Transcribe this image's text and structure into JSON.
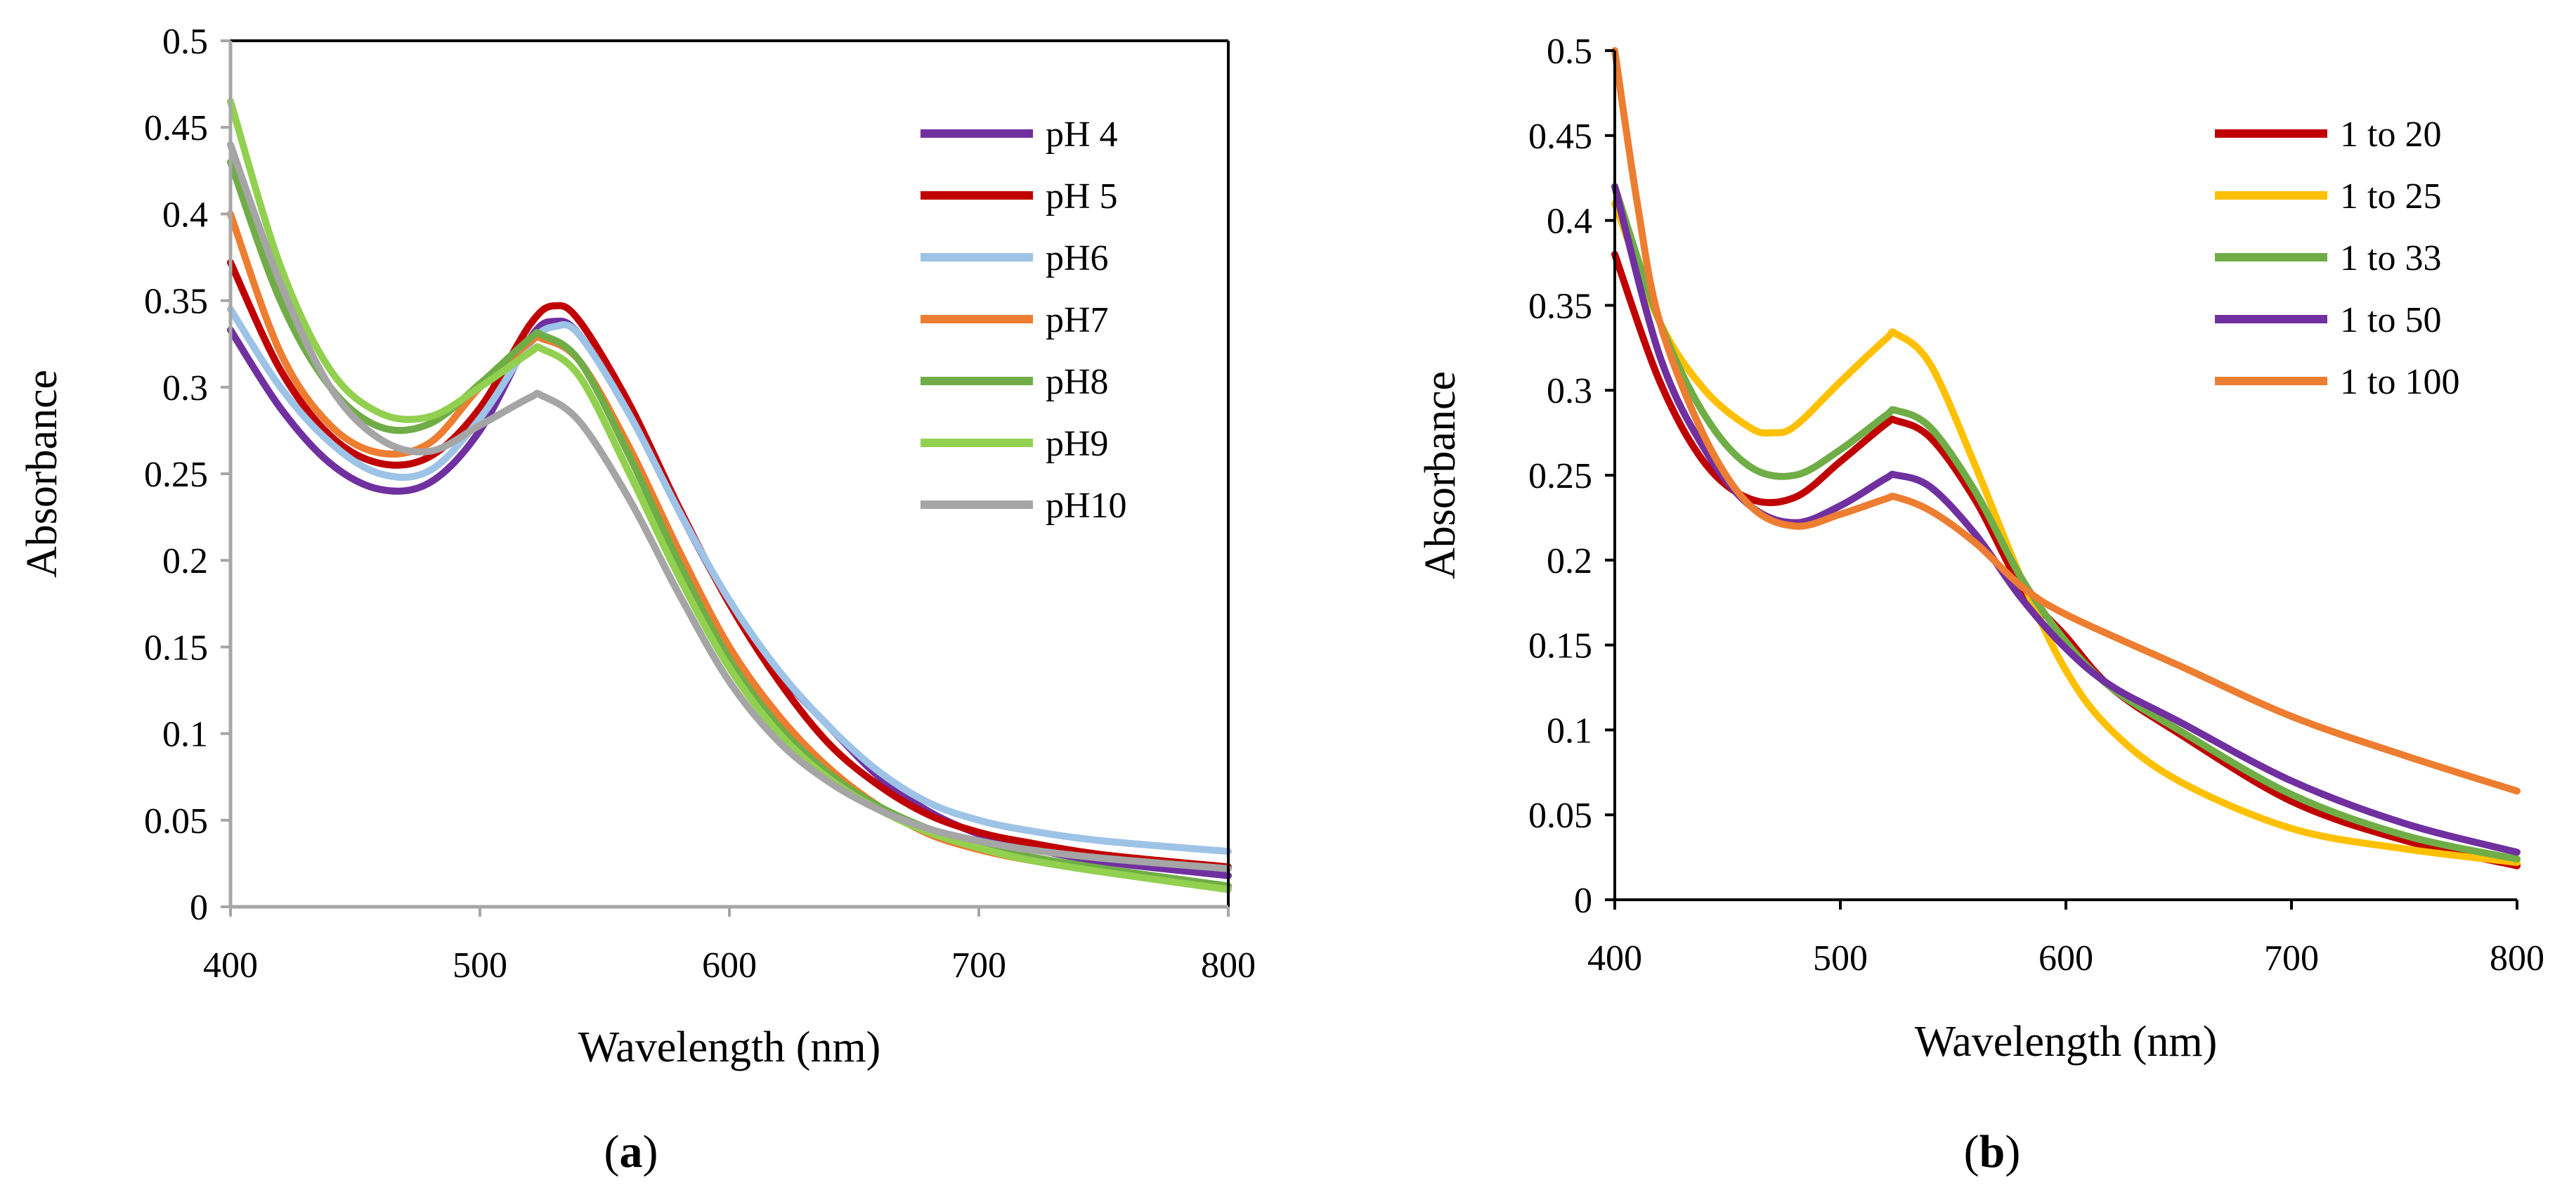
{
  "chart_data": [
    {
      "type": "line",
      "panel": "a",
      "panel_label": "a",
      "xlabel": "Wavelength (nm)",
      "ylabel": "Absorbance",
      "xlim": [
        400,
        800
      ],
      "ylim": [
        0,
        0.5
      ],
      "xticks": [
        400,
        500,
        600,
        700,
        800
      ],
      "xtick_labels": [
        "400",
        "500",
        "600",
        "700",
        "800"
      ],
      "yticks": [
        0,
        0.05,
        0.1,
        0.15,
        0.2,
        0.25,
        0.3,
        0.35,
        0.4,
        0.45,
        0.5
      ],
      "ytick_labels": [
        "0",
        "0.05",
        "0.1",
        "0.15",
        "0.2",
        "0.25",
        "0.3",
        "0.35",
        "0.4",
        "0.45",
        "0.5"
      ],
      "grid": false,
      "legend_position": "top-right",
      "series": [
        {
          "name": "pH 4",
          "color": "#7030A0",
          "x": [
            400,
            420,
            440,
            460,
            480,
            500,
            520,
            530,
            540,
            560,
            580,
            600,
            620,
            640,
            660,
            680,
            700,
            720,
            750,
            800
          ],
          "y": [
            0.333,
            0.288,
            0.256,
            0.241,
            0.245,
            0.275,
            0.328,
            0.338,
            0.33,
            0.285,
            0.228,
            0.176,
            0.135,
            0.104,
            0.075,
            0.055,
            0.042,
            0.034,
            0.026,
            0.018
          ]
        },
        {
          "name": "pH 5",
          "color": "#C00000",
          "x": [
            400,
            420,
            440,
            460,
            480,
            500,
            520,
            530,
            540,
            560,
            580,
            600,
            620,
            640,
            660,
            680,
            700,
            720,
            750,
            800
          ],
          "y": [
            0.372,
            0.31,
            0.272,
            0.256,
            0.26,
            0.288,
            0.336,
            0.347,
            0.338,
            0.29,
            0.23,
            0.175,
            0.13,
            0.094,
            0.07,
            0.053,
            0.043,
            0.037,
            0.03,
            0.023
          ]
        },
        {
          "name": "pH6",
          "color": "#9DC3E6",
          "x": [
            400,
            420,
            440,
            460,
            480,
            500,
            520,
            530,
            540,
            560,
            580,
            600,
            620,
            640,
            660,
            680,
            700,
            720,
            750,
            800
          ],
          "y": [
            0.345,
            0.3,
            0.268,
            0.25,
            0.252,
            0.282,
            0.325,
            0.335,
            0.33,
            0.284,
            0.228,
            0.177,
            0.136,
            0.104,
            0.078,
            0.06,
            0.05,
            0.044,
            0.038,
            0.032
          ]
        },
        {
          "name": "pH7",
          "color": "#ED7D31",
          "x": [
            400,
            420,
            440,
            460,
            480,
            500,
            520,
            525,
            540,
            560,
            580,
            600,
            620,
            640,
            660,
            680,
            700,
            720,
            750,
            800
          ],
          "y": [
            0.4,
            0.32,
            0.278,
            0.262,
            0.268,
            0.3,
            0.326,
            0.328,
            0.315,
            0.265,
            0.205,
            0.15,
            0.11,
            0.08,
            0.058,
            0.042,
            0.033,
            0.027,
            0.021,
            0.012
          ]
        },
        {
          "name": "pH8",
          "color": "#70AD47",
          "x": [
            400,
            420,
            440,
            460,
            480,
            500,
            520,
            525,
            540,
            560,
            580,
            600,
            620,
            640,
            660,
            680,
            700,
            720,
            750,
            800
          ],
          "y": [
            0.43,
            0.35,
            0.3,
            0.277,
            0.279,
            0.302,
            0.328,
            0.33,
            0.315,
            0.26,
            0.198,
            0.143,
            0.104,
            0.077,
            0.058,
            0.045,
            0.036,
            0.029,
            0.022,
            0.012
          ]
        },
        {
          "name": "pH9",
          "color": "#92D050",
          "x": [
            400,
            420,
            440,
            460,
            480,
            500,
            520,
            525,
            540,
            560,
            580,
            600,
            620,
            640,
            660,
            680,
            700,
            720,
            750,
            800
          ],
          "y": [
            0.465,
            0.37,
            0.31,
            0.285,
            0.283,
            0.3,
            0.32,
            0.322,
            0.306,
            0.25,
            0.19,
            0.138,
            0.1,
            0.074,
            0.056,
            0.043,
            0.034,
            0.027,
            0.02,
            0.01
          ]
        },
        {
          "name": "pH10",
          "color": "#A5A5A5",
          "x": [
            400,
            420,
            440,
            460,
            480,
            500,
            520,
            525,
            540,
            560,
            580,
            600,
            620,
            640,
            660,
            680,
            700,
            720,
            750,
            800
          ],
          "y": [
            0.44,
            0.36,
            0.3,
            0.27,
            0.263,
            0.278,
            0.294,
            0.295,
            0.28,
            0.235,
            0.18,
            0.13,
            0.095,
            0.072,
            0.056,
            0.045,
            0.038,
            0.033,
            0.028,
            0.022
          ]
        }
      ]
    },
    {
      "type": "line",
      "panel": "b",
      "panel_label": "b",
      "xlabel": "Wavelength (nm)",
      "ylabel": "Absorbance",
      "xlim": [
        400,
        800
      ],
      "ylim": [
        0,
        0.5
      ],
      "xticks": [
        400,
        500,
        600,
        700,
        800
      ],
      "xtick_labels": [
        "400",
        "500",
        "600",
        "700",
        "800"
      ],
      "yticks": [
        0,
        0.05,
        0.1,
        0.15,
        0.2,
        0.25,
        0.3,
        0.35,
        0.4,
        0.45,
        0.5
      ],
      "ytick_labels": [
        "0",
        "0.05",
        "0.1",
        "0.15",
        "0.2",
        "0.25",
        "0.3",
        "0.35",
        "0.4",
        "0.45",
        "0.5"
      ],
      "grid": false,
      "legend_position": "top-right",
      "series": [
        {
          "name": "1 to 20",
          "color": "#C00000",
          "x": [
            400,
            420,
            440,
            460,
            480,
            500,
            520,
            525,
            540,
            560,
            580,
            600,
            620,
            650,
            700,
            750,
            800
          ],
          "y": [
            0.38,
            0.305,
            0.257,
            0.236,
            0.237,
            0.258,
            0.28,
            0.282,
            0.272,
            0.235,
            0.185,
            0.155,
            0.125,
            0.098,
            0.058,
            0.035,
            0.02
          ]
        },
        {
          "name": "1 to 25",
          "color": "#FFC000",
          "x": [
            400,
            420,
            440,
            460,
            470,
            480,
            500,
            520,
            525,
            540,
            560,
            580,
            600,
            620,
            650,
            700,
            750,
            800
          ],
          "y": [
            0.41,
            0.34,
            0.3,
            0.278,
            0.275,
            0.279,
            0.305,
            0.33,
            0.333,
            0.315,
            0.255,
            0.19,
            0.135,
            0.1,
            0.07,
            0.042,
            0.03,
            0.022
          ]
        },
        {
          "name": "1 to 33",
          "color": "#70AD47",
          "x": [
            400,
            420,
            440,
            460,
            480,
            500,
            520,
            525,
            540,
            560,
            580,
            600,
            620,
            650,
            700,
            750,
            800
          ],
          "y": [
            0.42,
            0.34,
            0.285,
            0.255,
            0.25,
            0.265,
            0.285,
            0.288,
            0.278,
            0.24,
            0.19,
            0.152,
            0.125,
            0.1,
            0.062,
            0.038,
            0.024
          ]
        },
        {
          "name": "1 to 50",
          "color": "#7030A0",
          "x": [
            400,
            420,
            440,
            460,
            480,
            500,
            520,
            525,
            540,
            560,
            580,
            600,
            620,
            650,
            700,
            750,
            800
          ],
          "y": [
            0.42,
            0.32,
            0.265,
            0.232,
            0.222,
            0.232,
            0.248,
            0.25,
            0.243,
            0.215,
            0.178,
            0.148,
            0.126,
            0.105,
            0.07,
            0.045,
            0.028
          ]
        },
        {
          "name": "1 to 100",
          "color": "#ED7D31",
          "x": [
            400,
            410,
            420,
            440,
            460,
            480,
            500,
            520,
            525,
            540,
            560,
            580,
            600,
            650,
            700,
            750,
            800
          ],
          "y": [
            0.5,
            0.41,
            0.34,
            0.272,
            0.232,
            0.22,
            0.227,
            0.236,
            0.237,
            0.229,
            0.21,
            0.185,
            0.168,
            0.138,
            0.108,
            0.085,
            0.064
          ]
        }
      ]
    }
  ]
}
